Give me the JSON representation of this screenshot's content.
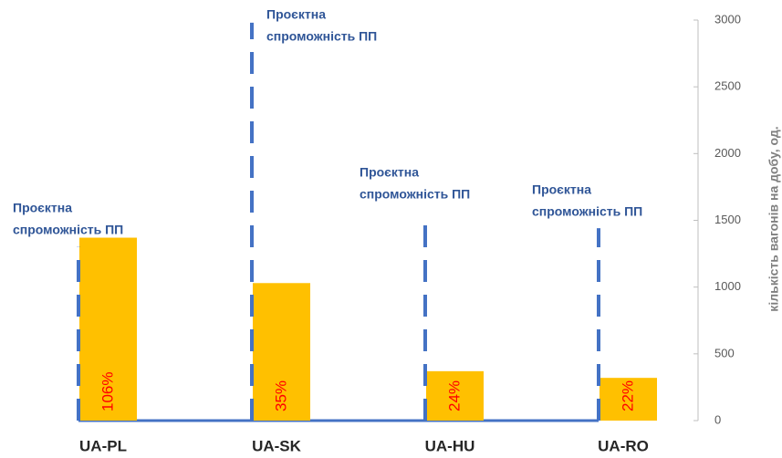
{
  "chart_data": {
    "type": "bar",
    "categories": [
      "UA-PL",
      "UA-SK",
      "UA-HU",
      "UA-RO"
    ],
    "series": [
      {
        "color": "#ffc000",
        "values": [
          1370,
          1030,
          370,
          320
        ]
      },
      {
        "color": "#4472c4",
        "values": [
          1300,
          2980,
          1557,
          1441
        ]
      }
    ],
    "bar_labels": [
      "106%",
      "35%",
      "24%",
      "22%"
    ],
    "capacity_label": [
      "Проєктна",
      "спроможність ПП"
    ],
    "y_label": "кількість вагонів на добу, од.",
    "ylim": [
      0,
      3000
    ],
    "yticks": [
      0,
      500,
      1000,
      1500,
      2000,
      2500,
      3000
    ]
  }
}
